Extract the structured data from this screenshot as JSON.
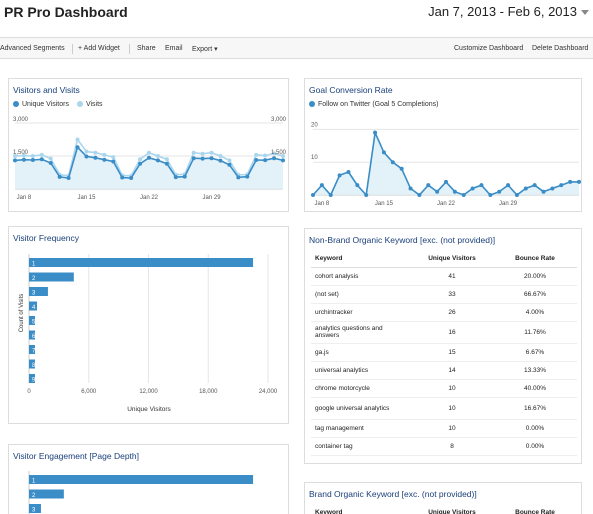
{
  "header": {
    "title": "PR Pro Dashboard",
    "date_range": "Jan 7, 2013 - Feb 6, 2013"
  },
  "toolbar": {
    "advanced_segments": "Advanced Segments",
    "add_widget": "+ Add Widget",
    "share": "Share",
    "email": "Email",
    "export": "Export ▾",
    "customize": "Customize Dashboard",
    "delete": "Delete Dashboard"
  },
  "widgets": {
    "visitors": {
      "title": "Visitors and Visits",
      "legend": [
        "Unique Visitors",
        "Visits"
      ],
      "y_left": [
        "3,000",
        "1,500"
      ],
      "y_right": [
        "3,000",
        "1,500"
      ],
      "x_ticks": [
        "Jan 8",
        "Jan 15",
        "Jan 22",
        "Jan 29"
      ]
    },
    "goal": {
      "title": "Goal Conversion Rate",
      "legend": "Follow on Twitter (Goal 5 Completions)",
      "y_ticks": [
        "20",
        "10"
      ],
      "x_ticks": [
        "Jan 8",
        "Jan 15",
        "Jan 22",
        "Jan 29"
      ]
    },
    "frequency": {
      "title": "Visitor Frequency",
      "ylabel": "Count of Visits",
      "xlabel": "Unique Visitors",
      "x_ticks": [
        "0",
        "6,000",
        "12,000",
        "18,000",
        "24,000"
      ]
    },
    "engagement": {
      "title": "Visitor Engagement [Page Depth]"
    },
    "nonbrand": {
      "title": "Non-Brand Organic Keyword [exc. (not provided)]",
      "columns": [
        "Keyword",
        "Unique Visitors",
        "Bounce Rate"
      ],
      "rows": [
        {
          "keyword": "cohort analysis",
          "visitors": "41",
          "bounce": "20.00%"
        },
        {
          "keyword": "(not set)",
          "visitors": "33",
          "bounce": "66.67%"
        },
        {
          "keyword": "urchintracker",
          "visitors": "26",
          "bounce": "4.00%"
        },
        {
          "keyword": "analytics questions and answers",
          "visitors": "16",
          "bounce": "11.76%"
        },
        {
          "keyword": "ga.js",
          "visitors": "15",
          "bounce": "6.67%"
        },
        {
          "keyword": "universal analytics",
          "visitors": "14",
          "bounce": "13.33%"
        },
        {
          "keyword": "chrome motorcycle",
          "visitors": "10",
          "bounce": "40.00%"
        },
        {
          "keyword": "google universal analytics",
          "visitors": "10",
          "bounce": "16.67%"
        },
        {
          "keyword": "tag management",
          "visitors": "10",
          "bounce": "0.00%"
        },
        {
          "keyword": "container tag",
          "visitors": "8",
          "bounce": "0.00%"
        }
      ]
    },
    "brand": {
      "title": "Brand Organic Keyword [exc. (not provided)]",
      "columns": [
        "Keyword",
        "Unique Visitors",
        "Bounce Rate"
      ]
    }
  },
  "colors": {
    "accent": "#3a8dc6",
    "area": "#dcedf8",
    "visits": "#a9d6ee",
    "title": "#1a3f7a"
  },
  "chart_data": [
    {
      "type": "line",
      "title": "Visitors and Visits",
      "ylim": [
        0,
        3000
      ],
      "x_ticks": [
        "Jan 8",
        "Jan 15",
        "Jan 22",
        "Jan 29"
      ],
      "series": [
        {
          "name": "Unique Visitors",
          "values": [
            1300,
            1330,
            1320,
            1350,
            1180,
            550,
            500,
            1900,
            1480,
            1420,
            1330,
            1250,
            520,
            500,
            1150,
            1420,
            1300,
            1150,
            540,
            560,
            1400,
            1380,
            1400,
            1290,
            1100,
            530,
            560,
            1320,
            1310,
            1400,
            1300
          ]
        },
        {
          "name": "Visits",
          "values": [
            1500,
            1520,
            1500,
            1550,
            1380,
            650,
            600,
            2250,
            1700,
            1650,
            1550,
            1450,
            620,
            600,
            1350,
            1650,
            1500,
            1350,
            650,
            670,
            1650,
            1600,
            1650,
            1500,
            1300,
            640,
            660,
            1550,
            1520,
            1620,
            1500
          ]
        }
      ]
    },
    {
      "type": "line",
      "title": "Goal Conversion Rate",
      "ylim": [
        0,
        25
      ],
      "x_ticks": [
        "Jan 8",
        "Jan 15",
        "Jan 22",
        "Jan 29"
      ],
      "series": [
        {
          "name": "Follow on Twitter (Goal 5 Completions)",
          "values": [
            0,
            3,
            0,
            6,
            7,
            3,
            0,
            19,
            13,
            10,
            8,
            2,
            0,
            3,
            1,
            4,
            1,
            0,
            2,
            3,
            0,
            1,
            3,
            0,
            2,
            3,
            1,
            2,
            3,
            4,
            4
          ]
        }
      ]
    },
    {
      "type": "bar",
      "title": "Visitor Frequency",
      "categories": [
        "1",
        "2",
        "3",
        "4",
        "5",
        "6",
        "7",
        "8",
        "9"
      ],
      "values": [
        22500,
        4500,
        1900,
        800,
        500,
        350,
        280,
        220,
        180
      ],
      "xlim": [
        0,
        24000
      ]
    },
    {
      "type": "bar",
      "title": "Visitor Engagement [Page Depth]",
      "categories": [
        "1",
        "2",
        "3"
      ],
      "values": [
        22500,
        3500,
        1200
      ],
      "xlim": [
        0,
        24000
      ]
    }
  ]
}
